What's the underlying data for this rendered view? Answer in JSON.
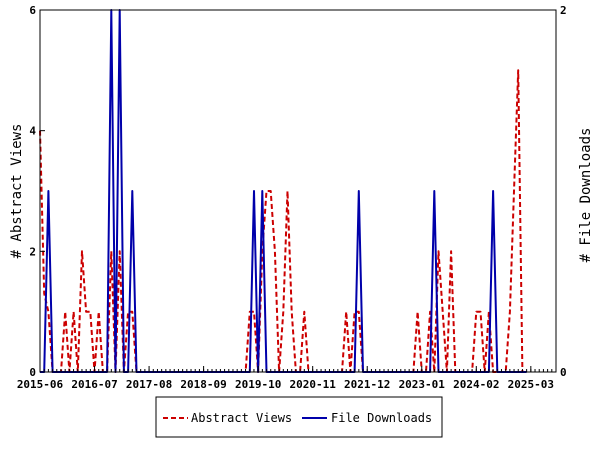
{
  "chart_data": {
    "type": "line",
    "title": "",
    "x_tick_labels": [
      "2015-06",
      "2016-07",
      "2017-08",
      "2018-09",
      "2019-10",
      "2020-11",
      "2021-12",
      "2023-01",
      "2024-02",
      "2025-03"
    ],
    "x_range": [
      "2015-06",
      "2025-09"
    ],
    "y_left": {
      "label": "# Abstract Views",
      "min": 0,
      "max": 6,
      "ticks": [
        "0",
        "2",
        "4",
        "6"
      ]
    },
    "y_right": {
      "label": "# File Downloads",
      "min": 0,
      "max": 2,
      "ticks": [
        "0",
        "2"
      ]
    },
    "grid": false,
    "legend_position": "bottom",
    "series": [
      {
        "name": "Abstract Views",
        "axis": "left",
        "color": "#cc0000",
        "dash": "dashed",
        "points": [
          [
            "2015-06",
            4
          ],
          [
            "2015-07",
            1.3
          ],
          [
            "2015-08",
            1
          ],
          [
            "2015-09",
            0
          ],
          [
            "2015-10",
            0
          ],
          [
            "2015-11",
            0
          ],
          [
            "2015-12",
            1
          ],
          [
            "2016-01",
            0
          ],
          [
            "2016-02",
            1
          ],
          [
            "2016-03",
            0
          ],
          [
            "2016-04",
            2
          ],
          [
            "2016-05",
            1
          ],
          [
            "2016-06",
            1
          ],
          [
            "2016-07",
            0
          ],
          [
            "2016-08",
            1
          ],
          [
            "2016-09",
            0
          ],
          [
            "2016-10",
            0
          ],
          [
            "2016-11",
            2
          ],
          [
            "2016-12",
            0
          ],
          [
            "2017-01",
            2
          ],
          [
            "2017-02",
            0
          ],
          [
            "2017-03",
            1
          ],
          [
            "2017-04",
            1
          ],
          [
            "2017-05",
            0
          ],
          [
            "2017-06",
            0
          ],
          [
            "2017-07",
            0
          ],
          [
            "2017-08",
            0
          ],
          [
            "2017-09",
            0
          ],
          [
            "2017-10",
            0
          ],
          [
            "2017-11",
            0
          ],
          [
            "2017-12",
            0
          ],
          [
            "2018-01",
            0
          ],
          [
            "2018-02",
            0
          ],
          [
            "2018-03",
            0
          ],
          [
            "2018-04",
            0
          ],
          [
            "2018-05",
            0
          ],
          [
            "2018-06",
            0
          ],
          [
            "2018-07",
            0
          ],
          [
            "2018-08",
            0
          ],
          [
            "2018-09",
            0
          ],
          [
            "2018-10",
            0
          ],
          [
            "2018-11",
            0
          ],
          [
            "2018-12",
            0
          ],
          [
            "2019-01",
            0
          ],
          [
            "2019-02",
            0
          ],
          [
            "2019-03",
            0
          ],
          [
            "2019-04",
            0
          ],
          [
            "2019-05",
            0
          ],
          [
            "2019-06",
            0
          ],
          [
            "2019-07",
            0
          ],
          [
            "2019-08",
            1
          ],
          [
            "2019-09",
            1
          ],
          [
            "2019-10",
            0
          ],
          [
            "2019-11",
            2
          ],
          [
            "2019-12",
            3
          ],
          [
            "2020-01",
            3
          ],
          [
            "2020-02",
            2
          ],
          [
            "2020-03",
            0
          ],
          [
            "2020-04",
            1
          ],
          [
            "2020-05",
            3
          ],
          [
            "2020-06",
            1
          ],
          [
            "2020-07",
            0
          ],
          [
            "2020-08",
            0
          ],
          [
            "2020-09",
            1
          ],
          [
            "2020-10",
            0
          ],
          [
            "2020-11",
            0
          ],
          [
            "2020-12",
            0
          ],
          [
            "2021-01",
            0
          ],
          [
            "2021-02",
            0
          ],
          [
            "2021-03",
            0
          ],
          [
            "2021-04",
            0
          ],
          [
            "2021-05",
            0
          ],
          [
            "2021-06",
            0
          ],
          [
            "2021-07",
            1
          ],
          [
            "2021-08",
            0
          ],
          [
            "2021-09",
            1
          ],
          [
            "2021-10",
            1
          ],
          [
            "2021-11",
            0
          ],
          [
            "2021-12",
            0
          ],
          [
            "2022-01",
            0
          ],
          [
            "2022-02",
            0
          ],
          [
            "2022-03",
            0
          ],
          [
            "2022-04",
            0
          ],
          [
            "2022-05",
            0
          ],
          [
            "2022-06",
            0
          ],
          [
            "2022-07",
            0
          ],
          [
            "2022-08",
            0
          ],
          [
            "2022-09",
            0
          ],
          [
            "2022-10",
            0
          ],
          [
            "2022-11",
            0
          ],
          [
            "2022-12",
            1
          ],
          [
            "2023-01",
            0
          ],
          [
            "2023-02",
            0
          ],
          [
            "2023-03",
            1
          ],
          [
            "2023-04",
            0
          ],
          [
            "2023-05",
            2
          ],
          [
            "2023-06",
            1
          ],
          [
            "2023-07",
            0
          ],
          [
            "2023-08",
            2
          ],
          [
            "2023-09",
            0
          ],
          [
            "2023-10",
            0
          ],
          [
            "2023-11",
            0
          ],
          [
            "2023-12",
            0
          ],
          [
            "2024-01",
            0
          ],
          [
            "2024-02",
            1
          ],
          [
            "2024-03",
            1
          ],
          [
            "2024-04",
            0
          ],
          [
            "2024-05",
            1
          ],
          [
            "2024-06",
            0
          ],
          [
            "2024-07",
            0
          ],
          [
            "2024-08",
            0
          ],
          [
            "2024-09",
            0
          ],
          [
            "2024-10",
            1
          ],
          [
            "2024-11",
            3
          ],
          [
            "2024-12",
            5
          ],
          [
            "2025-01",
            0
          ],
          [
            "2025-02",
            0
          ]
        ]
      },
      {
        "name": "File Downloads",
        "axis": "right",
        "color": "#0000aa",
        "dash": "solid",
        "points": [
          [
            "2015-06",
            0
          ],
          [
            "2015-07",
            0
          ],
          [
            "2015-08",
            1
          ],
          [
            "2015-09",
            0
          ],
          [
            "2015-10",
            0
          ],
          [
            "2015-11",
            0
          ],
          [
            "2015-12",
            0
          ],
          [
            "2016-01",
            0
          ],
          [
            "2016-02",
            0
          ],
          [
            "2016-03",
            0
          ],
          [
            "2016-04",
            0
          ],
          [
            "2016-05",
            0
          ],
          [
            "2016-06",
            0
          ],
          [
            "2016-07",
            0
          ],
          [
            "2016-08",
            0
          ],
          [
            "2016-09",
            0
          ],
          [
            "2016-10",
            0
          ],
          [
            "2016-11",
            2
          ],
          [
            "2016-12",
            0
          ],
          [
            "2017-01",
            2
          ],
          [
            "2017-02",
            0
          ],
          [
            "2017-03",
            0
          ],
          [
            "2017-04",
            1
          ],
          [
            "2017-05",
            0
          ],
          [
            "2017-06",
            0
          ],
          [
            "2017-07",
            0
          ],
          [
            "2017-08",
            0
          ],
          [
            "2017-09",
            0
          ],
          [
            "2017-10",
            0
          ],
          [
            "2017-11",
            0
          ],
          [
            "2017-12",
            0
          ],
          [
            "2018-01",
            0
          ],
          [
            "2018-02",
            0
          ],
          [
            "2018-03",
            0
          ],
          [
            "2018-04",
            0
          ],
          [
            "2018-05",
            0
          ],
          [
            "2018-06",
            0
          ],
          [
            "2018-07",
            0
          ],
          [
            "2018-08",
            0
          ],
          [
            "2018-09",
            0
          ],
          [
            "2018-10",
            0
          ],
          [
            "2018-11",
            0
          ],
          [
            "2018-12",
            0
          ],
          [
            "2019-01",
            0
          ],
          [
            "2019-02",
            0
          ],
          [
            "2019-03",
            0
          ],
          [
            "2019-04",
            0
          ],
          [
            "2019-05",
            0
          ],
          [
            "2019-06",
            0
          ],
          [
            "2019-07",
            0
          ],
          [
            "2019-08",
            0
          ],
          [
            "2019-09",
            1
          ],
          [
            "2019-10",
            0
          ],
          [
            "2019-11",
            1
          ],
          [
            "2019-12",
            0
          ],
          [
            "2020-01",
            0
          ],
          [
            "2020-02",
            0
          ],
          [
            "2020-03",
            0
          ],
          [
            "2020-04",
            0
          ],
          [
            "2020-05",
            0
          ],
          [
            "2020-06",
            0
          ],
          [
            "2020-07",
            0
          ],
          [
            "2020-08",
            0
          ],
          [
            "2020-09",
            0
          ],
          [
            "2020-10",
            0
          ],
          [
            "2020-11",
            0
          ],
          [
            "2020-12",
            0
          ],
          [
            "2021-01",
            0
          ],
          [
            "2021-02",
            0
          ],
          [
            "2021-03",
            0
          ],
          [
            "2021-04",
            0
          ],
          [
            "2021-05",
            0
          ],
          [
            "2021-06",
            0
          ],
          [
            "2021-07",
            0
          ],
          [
            "2021-08",
            0
          ],
          [
            "2021-09",
            0
          ],
          [
            "2021-10",
            1
          ],
          [
            "2021-11",
            0
          ],
          [
            "2021-12",
            0
          ],
          [
            "2022-01",
            0
          ],
          [
            "2022-02",
            0
          ],
          [
            "2022-03",
            0
          ],
          [
            "2022-04",
            0
          ],
          [
            "2022-05",
            0
          ],
          [
            "2022-06",
            0
          ],
          [
            "2022-07",
            0
          ],
          [
            "2022-08",
            0
          ],
          [
            "2022-09",
            0
          ],
          [
            "2022-10",
            0
          ],
          [
            "2022-11",
            0
          ],
          [
            "2022-12",
            0
          ],
          [
            "2023-01",
            0
          ],
          [
            "2023-02",
            0
          ],
          [
            "2023-03",
            0
          ],
          [
            "2023-04",
            1
          ],
          [
            "2023-05",
            0
          ],
          [
            "2023-06",
            0
          ],
          [
            "2023-07",
            0
          ],
          [
            "2023-08",
            0
          ],
          [
            "2023-09",
            0
          ],
          [
            "2023-10",
            0
          ],
          [
            "2023-11",
            0
          ],
          [
            "2023-12",
            0
          ],
          [
            "2024-01",
            0
          ],
          [
            "2024-02",
            0
          ],
          [
            "2024-03",
            0
          ],
          [
            "2024-04",
            0
          ],
          [
            "2024-05",
            0
          ],
          [
            "2024-06",
            1
          ],
          [
            "2024-07",
            0
          ],
          [
            "2024-08",
            0
          ],
          [
            "2024-09",
            0
          ],
          [
            "2024-10",
            0
          ],
          [
            "2024-11",
            0
          ],
          [
            "2024-12",
            0
          ],
          [
            "2025-01",
            0
          ],
          [
            "2025-02",
            0
          ]
        ]
      }
    ]
  }
}
